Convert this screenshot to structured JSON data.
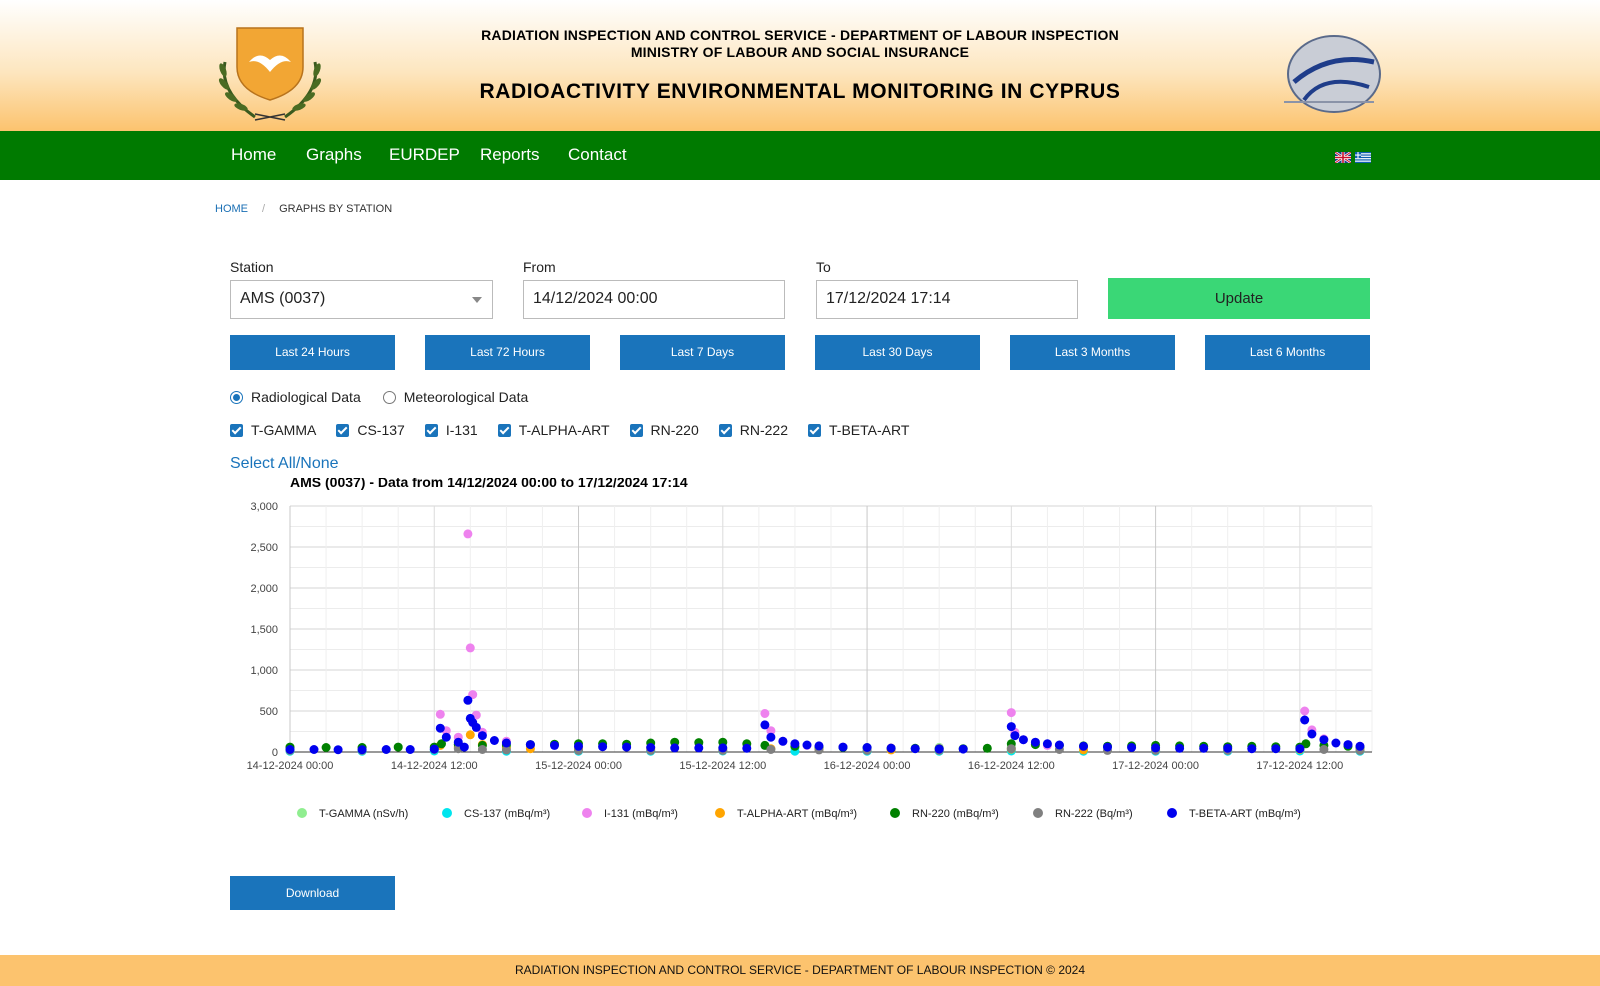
{
  "header": {
    "line1": "RADIATION INSPECTION AND CONTROL SERVICE - DEPARTMENT OF LABOUR INSPECTION",
    "line2": "MINISTRY OF LABOUR AND SOCIAL INSURANCE",
    "title": "RADIOACTIVITY ENVIRONMENTAL MONITORING IN CYPRUS"
  },
  "nav": {
    "items": [
      "Home",
      "Graphs",
      "EURDEP",
      "Reports",
      "Contact"
    ]
  },
  "breadcrumb": {
    "home": "HOME",
    "sep": "/",
    "current": "GRAPHS BY STATION"
  },
  "form": {
    "station_label": "Station",
    "station_value": "AMS (0037)",
    "from_label": "From",
    "from_value": "14/12/2024 00:00",
    "to_label": "To",
    "to_value": "17/12/2024 17:14",
    "update_label": "Update"
  },
  "ranges": [
    "Last 24 Hours",
    "Last 72 Hours",
    "Last 7 Days",
    "Last 30 Days",
    "Last 3 Months",
    "Last 6 Months"
  ],
  "data_type": {
    "options": [
      "Radiological Data",
      "Meteorological Data"
    ],
    "selected": "Radiological Data"
  },
  "checkboxes": [
    "T-GAMMA",
    "CS-137",
    "I-131",
    "T-ALPHA-ART",
    "RN-220",
    "RN-222",
    "T-BETA-ART"
  ],
  "select_all_label": "Select All/None",
  "download_label": "Download",
  "footer": "RADIATION INSPECTION AND CONTROL SERVICE - DEPARTMENT OF LABOUR INSPECTION © 2024",
  "colors": {
    "nav": "#007a00",
    "button": "#1a74bb",
    "update": "#3ad776",
    "footer": "#fcc36e"
  },
  "chart_data": {
    "type": "scatter",
    "title": "AMS (0037) - Data from 14/12/2024 00:00 to 17/12/2024 17:14",
    "ylim": [
      0,
      3000
    ],
    "yticks": [
      "0",
      "500",
      "1,000",
      "1,500",
      "2,000",
      "2,500",
      "3,000"
    ],
    "xrange_hours": [
      0,
      90
    ],
    "xticks": [
      "14-12-2024 00:00",
      "14-12-2024 12:00",
      "15-12-2024 00:00",
      "15-12-2024 12:00",
      "16-12-2024 00:00",
      "16-12-2024 12:00",
      "17-12-2024 00:00",
      "17-12-2024 12:00"
    ],
    "legend_position": "bottom",
    "series": [
      {
        "name": "T-GAMMA (nSv/h)",
        "color": "#90ee90",
        "x": [
          0,
          6,
          12,
          18,
          24,
          30,
          36,
          42,
          48,
          54,
          60,
          66,
          72,
          78,
          84,
          89
        ],
        "y": [
          55,
          55,
          56,
          56,
          55,
          56,
          56,
          55,
          55,
          56,
          55,
          55,
          56,
          55,
          56,
          55
        ]
      },
      {
        "name": "CS-137 (mBq/m³)",
        "color": "#00e5ee",
        "x": [
          0,
          6,
          12,
          18,
          24,
          30,
          36,
          42,
          48,
          54,
          60,
          66,
          72,
          78,
          84,
          89
        ],
        "y": [
          10,
          10,
          12,
          10,
          10,
          10,
          12,
          10,
          10,
          10,
          12,
          10,
          10,
          10,
          12,
          10
        ]
      },
      {
        "name": "I-131 (mBq/m³)",
        "color": "#ee82ee",
        "x": [
          0,
          6,
          12.5,
          13,
          14,
          14.8,
          15,
          15.2,
          15.5,
          16,
          18,
          20,
          24,
          30,
          39.5,
          40,
          41,
          43,
          46,
          50,
          54,
          60,
          60.3,
          61,
          63,
          66,
          72,
          80,
          84.4,
          85,
          86,
          88,
          89
        ],
        "y": [
          40,
          40,
          460,
          260,
          180,
          2660,
          1270,
          700,
          450,
          240,
          130,
          80,
          60,
          50,
          470,
          260,
          130,
          80,
          60,
          50,
          45,
          480,
          240,
          150,
          80,
          60,
          50,
          45,
          500,
          270,
          160,
          80,
          70
        ]
      },
      {
        "name": "T-ALPHA-ART (mBq/m³)",
        "color": "#ffa500",
        "x": [
          12.5,
          14,
          15,
          16,
          18,
          20,
          24,
          30,
          36,
          40,
          44,
          50,
          54,
          60,
          66,
          72,
          78,
          84,
          89
        ],
        "y": [
          80,
          60,
          210,
          90,
          50,
          40,
          35,
          35,
          30,
          40,
          30,
          25,
          25,
          35,
          25,
          25,
          25,
          30,
          25
        ]
      },
      {
        "name": "RN-220 (mBq/m³)",
        "color": "#008000",
        "x": [
          0,
          3,
          6,
          9,
          12,
          12.6,
          14,
          16,
          18,
          20,
          22,
          24,
          26,
          28,
          30,
          32,
          34,
          36,
          38,
          39.5,
          42,
          44,
          46,
          48,
          50,
          52,
          54,
          56,
          58,
          60,
          62,
          64,
          66,
          68,
          70,
          72,
          74,
          76,
          78,
          80,
          82,
          84,
          84.5,
          86,
          88,
          89
        ],
        "y": [
          60,
          55,
          55,
          60,
          60,
          100,
          90,
          80,
          85,
          90,
          95,
          100,
          100,
          95,
          110,
          120,
          115,
          120,
          100,
          80,
          70,
          60,
          55,
          50,
          45,
          45,
          40,
          40,
          45,
          100,
          90,
          80,
          75,
          70,
          75,
          80,
          75,
          70,
          65,
          70,
          65,
          60,
          100,
          80,
          70,
          60
        ]
      },
      {
        "name": "RN-222 (Bq/m³)",
        "color": "#808080",
        "x": [
          0,
          6,
          12,
          14,
          16,
          18,
          24,
          30,
          36,
          40,
          44,
          48,
          54,
          60,
          64,
          68,
          72,
          78,
          84,
          86,
          89
        ],
        "y": [
          20,
          20,
          30,
          40,
          30,
          25,
          20,
          20,
          20,
          30,
          25,
          20,
          20,
          40,
          30,
          20,
          20,
          20,
          40,
          30,
          20
        ]
      },
      {
        "name": "T-BETA-ART (mBq/m³)",
        "color": "#0000ee",
        "x": [
          0,
          2,
          4,
          6,
          8,
          10,
          12,
          12.5,
          13,
          14,
          14.5,
          14.8,
          15,
          15.2,
          15.5,
          16,
          17,
          18,
          20,
          22,
          24,
          26,
          28,
          30,
          32,
          34,
          36,
          38,
          39.5,
          40,
          41,
          42,
          43,
          44,
          46,
          48,
          50,
          52,
          54,
          56,
          60,
          60.3,
          61,
          62,
          63,
          64,
          66,
          68,
          70,
          72,
          74,
          76,
          78,
          80,
          82,
          84,
          84.4,
          85,
          86,
          87,
          88,
          89
        ],
        "y": [
          30,
          30,
          28,
          28,
          30,
          30,
          35,
          290,
          180,
          120,
          60,
          630,
          410,
          360,
          300,
          200,
          140,
          110,
          90,
          80,
          70,
          65,
          60,
          55,
          50,
          50,
          50,
          45,
          330,
          180,
          130,
          100,
          85,
          75,
          60,
          55,
          45,
          40,
          35,
          35,
          310,
          200,
          150,
          120,
          100,
          85,
          70,
          60,
          55,
          50,
          45,
          45,
          45,
          40,
          40,
          40,
          390,
          220,
          150,
          110,
          90,
          70
        ]
      }
    ]
  }
}
